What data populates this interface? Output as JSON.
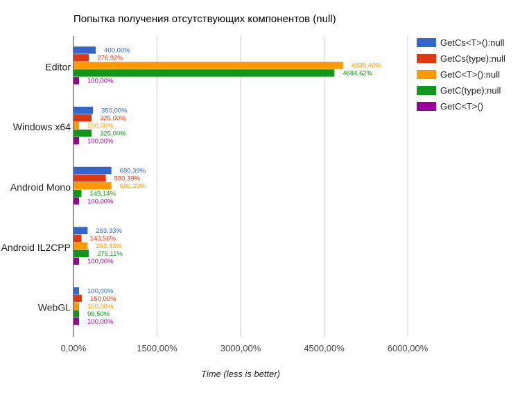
{
  "chart_data": {
    "type": "bar",
    "orientation": "horizontal",
    "title": "Попытка получения отсутствующих компонентов (null)",
    "xlabel": "Time (less is better)",
    "ylabel": "",
    "xlim": [
      0,
      6000
    ],
    "x_ticks": [
      0,
      1500,
      3000,
      4500,
      6000
    ],
    "x_tick_labels": [
      "0,00%",
      "1500,00%",
      "3000,00%",
      "4500,00%",
      "6000,00%"
    ],
    "grid": true,
    "legend_position": "right",
    "categories": [
      "Editor",
      "Windows x64",
      "Android Mono",
      "Android IL2CPP",
      "WebGL"
    ],
    "series": [
      {
        "name": "GetCs<T>():null",
        "color": "#3366cc",
        "values": [
          400.0,
          350.0,
          680.39,
          253.33,
          100.0
        ],
        "labels": [
          "400,00%",
          "350,00%",
          "680,39%",
          "253,33%",
          "100,00%"
        ]
      },
      {
        "name": "GetCs(type):null",
        "color": "#dc3912",
        "values": [
          276.92,
          325.0,
          580.39,
          143.56,
          150.0
        ],
        "labels": [
          "276,92%",
          "325,00%",
          "580,39%",
          "143,56%",
          "150,00%"
        ]
      },
      {
        "name": "GetC<T>():null",
        "color": "#ff9900",
        "values": [
          4838.46,
          100.0,
          680.39,
          253.33,
          100.0
        ],
        "labels": [
          "4838,46%",
          "100,00%",
          "680,39%",
          "253,33%",
          "100,00%"
        ]
      },
      {
        "name": "GetC(type):null",
        "color": "#109618",
        "values": [
          4684.62,
          325.0,
          143.14,
          275.11,
          99.5
        ],
        "labels": [
          "4684,62%",
          "325,00%",
          "143,14%",
          "275,11%",
          "99,50%"
        ]
      },
      {
        "name": "GetC<T>()",
        "color": "#990099",
        "values": [
          100.0,
          100.0,
          100.0,
          100.0,
          100.0
        ],
        "labels": [
          "100,00%",
          "100,00%",
          "100,00%",
          "100,00%",
          "100,00%"
        ]
      }
    ]
  }
}
